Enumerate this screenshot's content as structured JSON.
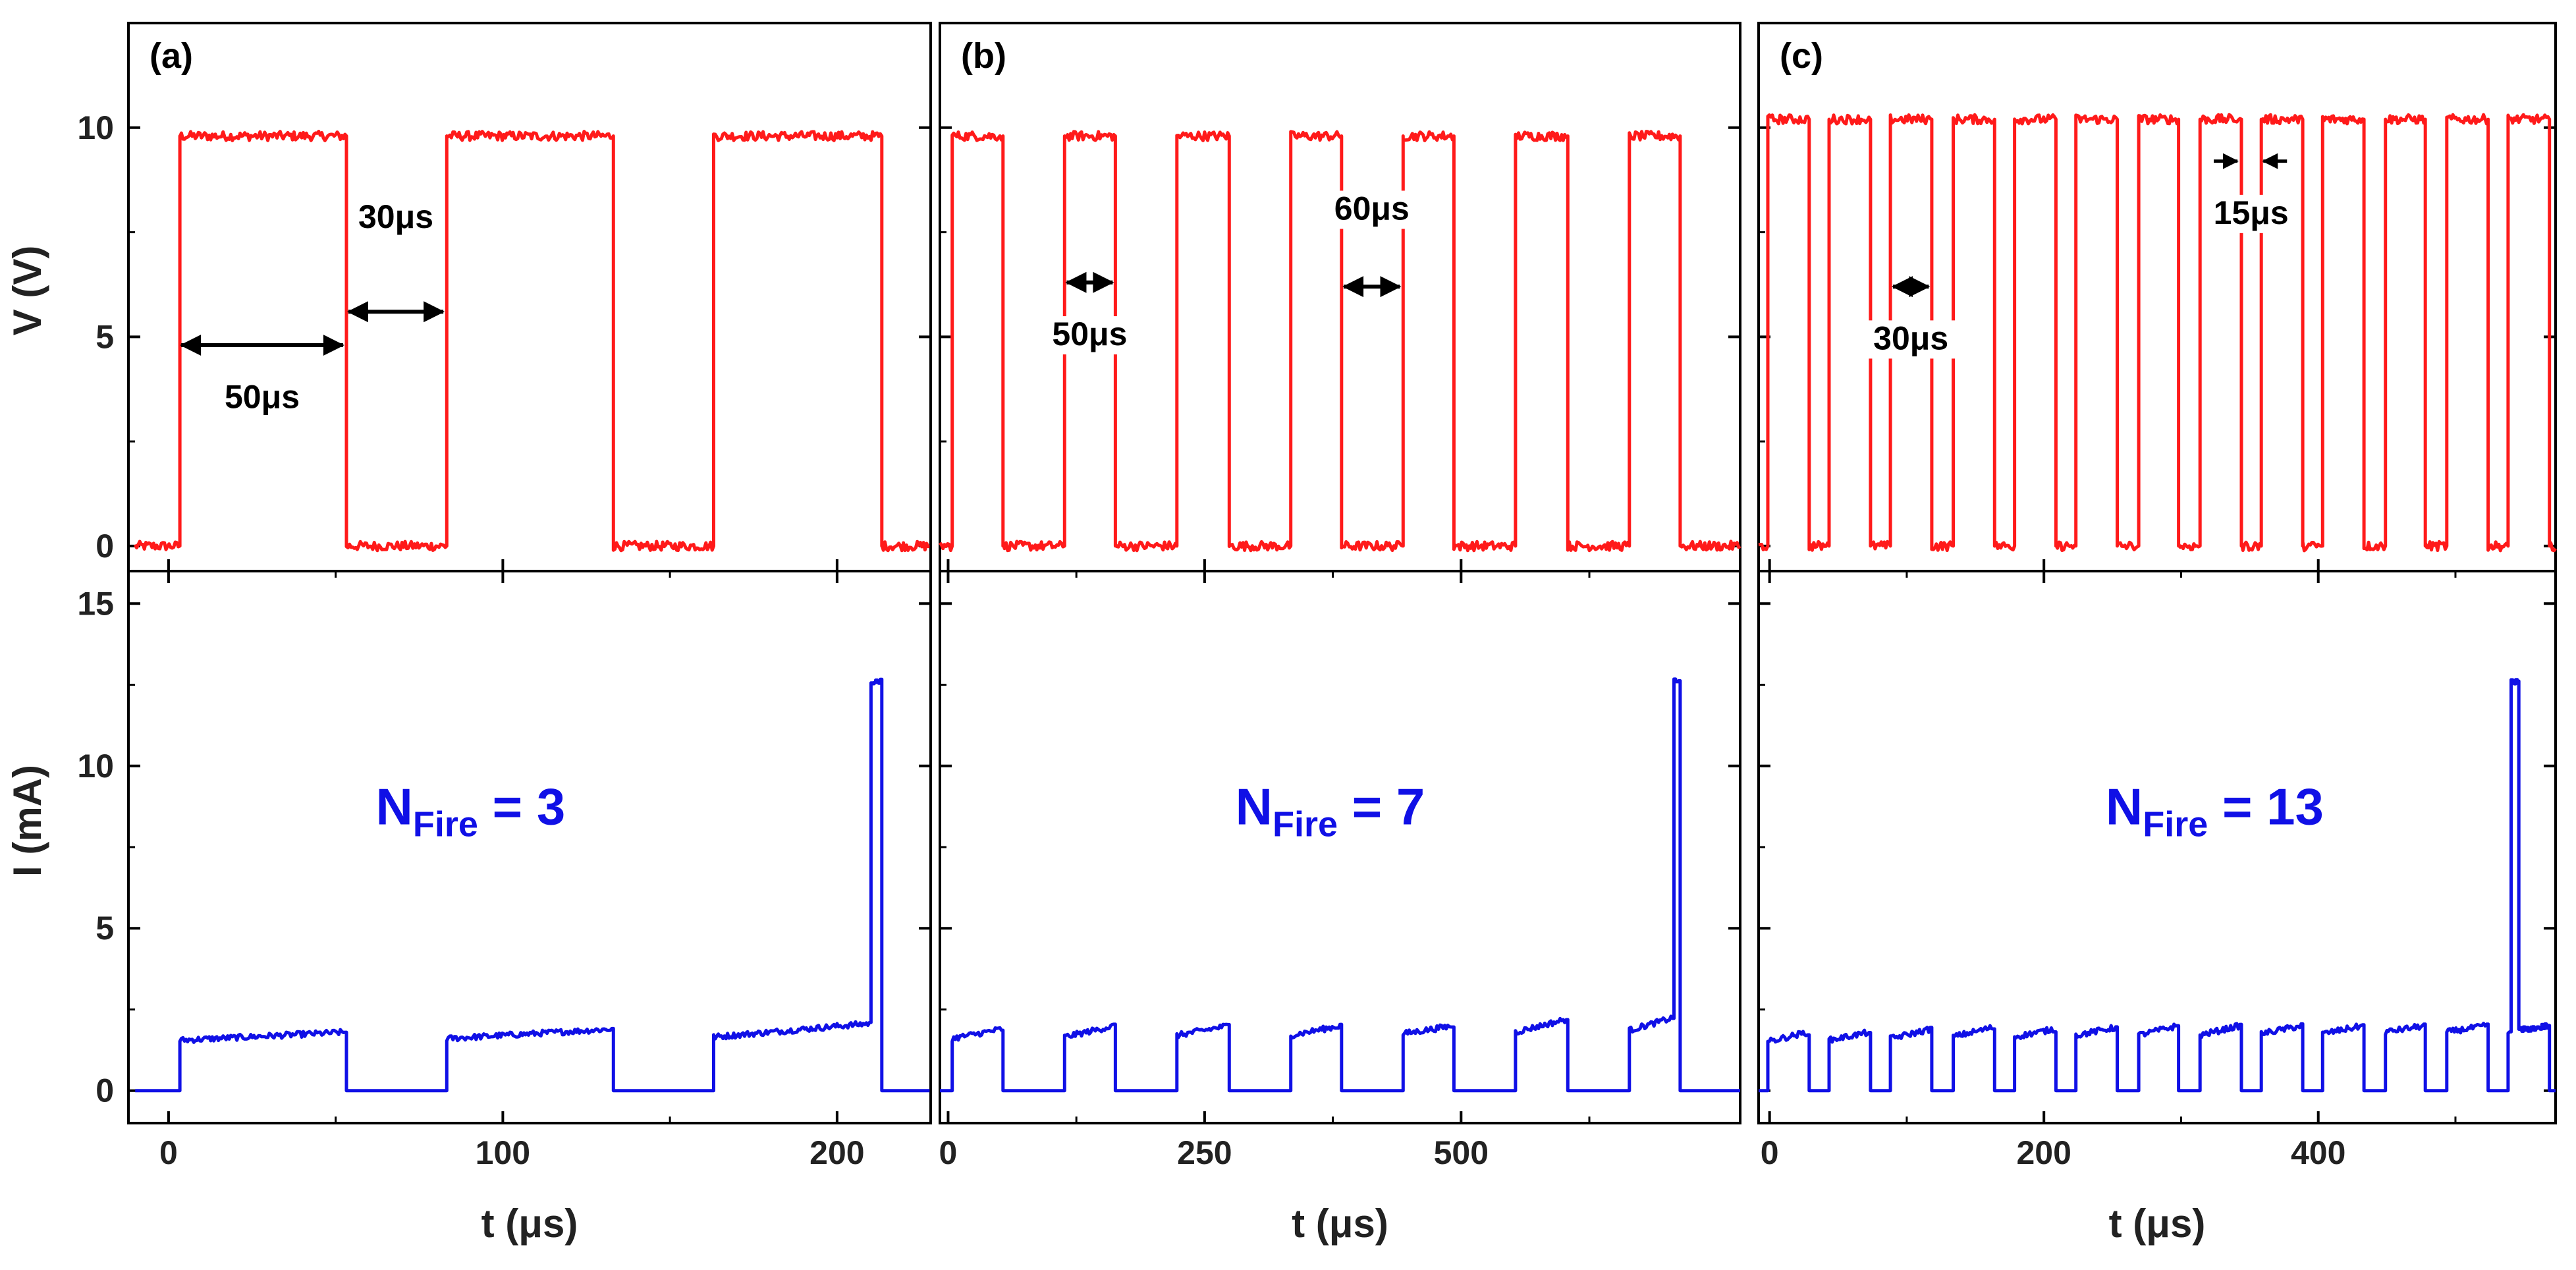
{
  "chart_data": [
    {
      "type": "line",
      "panel": "(a)",
      "xlabel": "t (μs)",
      "xlim": [
        -12,
        228
      ],
      "xticks": [
        0,
        100,
        200
      ],
      "voltage": {
        "ylabel": "V (V)",
        "ylim": [
          -0.6,
          12.5
        ],
        "yticks": [
          0,
          5,
          10
        ],
        "color": "#ff1a1a",
        "high": 9.8,
        "low": 0,
        "pulses": [
          [
            3,
            53
          ],
          [
            83,
            133
          ],
          [
            163,
            213
          ]
        ],
        "x_start": -10,
        "x_end": 228,
        "annotations": [
          {
            "label": "50μs",
            "from": 3,
            "to": 53,
            "y": 4.8,
            "text_x": 28,
            "text_y": 3.3,
            "text_anchor": "middle"
          },
          {
            "label": "30μs",
            "from": 53,
            "to": 83,
            "y": 5.6,
            "text_x": 68,
            "text_y": 7.6,
            "text_anchor": "middle"
          }
        ]
      },
      "current": {
        "ylabel": "I (mA)",
        "ylim": [
          -1,
          16
        ],
        "yticks": [
          0,
          5,
          10,
          15
        ],
        "color": "#1010e6",
        "on_levels": [
          [
            1.55,
            1.8
          ],
          [
            1.6,
            1.9
          ],
          [
            1.65,
            2.1
          ]
        ],
        "fire": {
          "t": 210,
          "t_end": 213,
          "level": 12.6
        },
        "annotation": {
          "text": "N",
          "sub": "Fire",
          "suffix": " = 3",
          "x": 62,
          "y": 8.2
        }
      }
    },
    {
      "type": "line",
      "panel": "(b)",
      "xlabel": "t (μs)",
      "xlim": [
        -8,
        772
      ],
      "xticks": [
        0,
        250,
        500
      ],
      "voltage": {
        "ylabel": "",
        "ylim": [
          -0.6,
          12.5
        ],
        "yticks": [
          0,
          5,
          10
        ],
        "color": "#ff1a1a",
        "high": 9.8,
        "low": 0,
        "pulses": [
          [
            3,
            53
          ],
          [
            113,
            163
          ],
          [
            223,
            273
          ],
          [
            333,
            383
          ],
          [
            443,
            493
          ],
          [
            553,
            603
          ],
          [
            663,
            713
          ]
        ],
        "x_start": -8,
        "x_end": 772,
        "annotations": [
          {
            "label": "50μs",
            "from": 113,
            "to": 163,
            "y": 6.3,
            "text_x": 138,
            "text_y": 4.8,
            "text_anchor": "middle"
          },
          {
            "label": "60μs",
            "from": 383,
            "to": 443,
            "y": 6.2,
            "text_x": 413,
            "text_y": 7.8,
            "text_anchor": "middle"
          }
        ]
      },
      "current": {
        "ylabel": "",
        "ylim": [
          -1,
          16
        ],
        "yticks": [
          0,
          5,
          10,
          15
        ],
        "color": "#1010e6",
        "on_levels": [
          [
            1.6,
            1.9
          ],
          [
            1.65,
            2.0
          ],
          [
            1.7,
            2.0
          ],
          [
            1.7,
            2.0
          ],
          [
            1.75,
            2.0
          ],
          [
            1.8,
            2.2
          ],
          [
            1.85,
            2.3
          ]
        ],
        "fire": {
          "t": 707,
          "t_end": 713,
          "level": 12.6
        },
        "annotation": {
          "text": "N",
          "sub": "Fire",
          "suffix": " = 7",
          "x": 280,
          "y": 8.2
        }
      }
    },
    {
      "type": "line",
      "panel": "(c)",
      "xlabel": "t (μs)",
      "xlim": [
        -8,
        573
      ],
      "xticks": [
        0,
        200,
        400
      ],
      "voltage": {
        "ylabel": "",
        "ylim": [
          -0.6,
          12.5
        ],
        "yticks": [
          0,
          5,
          10
        ],
        "color": "#ff1a1a",
        "high": 10.2,
        "low": 0,
        "pulses": [
          [
            -2,
            28
          ],
          [
            43,
            73
          ],
          [
            88,
            118
          ],
          [
            133,
            163
          ],
          [
            178,
            208
          ],
          [
            223,
            253
          ],
          [
            268,
            298
          ],
          [
            313,
            343
          ],
          [
            358,
            388
          ],
          [
            403,
            433
          ],
          [
            448,
            478
          ],
          [
            493,
            523
          ],
          [
            538,
            568
          ]
        ],
        "x_start": -8,
        "x_end": 573,
        "annotations": [
          {
            "label": "30μs",
            "from": 88,
            "to": 118,
            "y": 6.2,
            "text_x": 103,
            "text_y": 4.7,
            "text_anchor": "middle"
          },
          {
            "label": "15μs",
            "from": 343,
            "to": 358,
            "y": 9.2,
            "text_x": 351,
            "text_y": 7.7,
            "text_anchor": "middle",
            "outward": true
          }
        ]
      },
      "current": {
        "ylabel": "",
        "ylim": [
          -1,
          16
        ],
        "yticks": [
          0,
          5,
          10,
          15
        ],
        "color": "#1010e6",
        "on_levels": [
          [
            1.5,
            1.8
          ],
          [
            1.55,
            1.8
          ],
          [
            1.6,
            1.9
          ],
          [
            1.65,
            1.95
          ],
          [
            1.65,
            1.9
          ],
          [
            1.7,
            1.95
          ],
          [
            1.7,
            2.0
          ],
          [
            1.7,
            2.0
          ],
          [
            1.75,
            2.0
          ],
          [
            1.75,
            2.0
          ],
          [
            1.8,
            2.0
          ],
          [
            1.8,
            2.0
          ],
          [
            1.8,
            2.0
          ]
        ],
        "fire": {
          "t": 540,
          "t_end": 546,
          "level": 12.6
        },
        "annotation": {
          "text": "N",
          "sub": "Fire",
          "suffix": " = 13",
          "x": 245,
          "y": 8.2
        }
      }
    }
  ]
}
